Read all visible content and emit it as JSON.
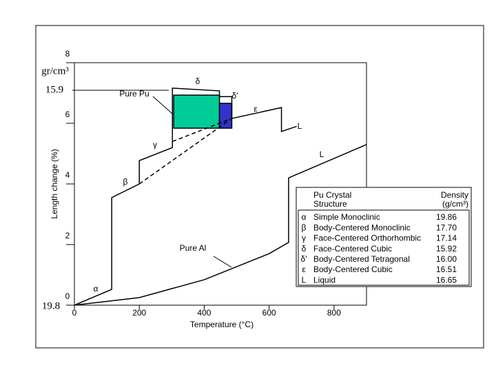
{
  "chart_data": {
    "type": "line",
    "xlabel": "Temperature (°C)",
    "ylabel": "Length change (%)",
    "xlim": [
      0,
      900
    ],
    "ylim": [
      0,
      8
    ],
    "xticks": [
      0,
      200,
      400,
      600,
      800
    ],
    "yticks": [
      0,
      2,
      4,
      6,
      8
    ],
    "series": [
      {
        "name": "Pure Pu",
        "color": "#000000",
        "dash": false,
        "x": [
          0,
          115,
          115,
          200,
          200,
          302,
          302,
          447,
          447,
          485,
          485,
          638,
          638,
          685
        ],
        "values": [
          0,
          0.52,
          3.55,
          4.0,
          4.77,
          5.2,
          7.16,
          7.07,
          6.88,
          6.88,
          6.16,
          6.52,
          5.73,
          5.9
        ]
      },
      {
        "name": "Pure Pu",
        "color": "#000000",
        "dash": true,
        "x": [
          200,
          485
        ],
        "values": [
          4.0,
          6.16
        ]
      },
      {
        "name": "Pure Pu",
        "color": "#000000",
        "dash": true,
        "x": [
          302,
          485
        ],
        "values": [
          5.4,
          6.16
        ]
      },
      {
        "name": "Pure Al",
        "color": "#000000",
        "dash": false,
        "x": [
          0,
          200,
          400,
          600,
          660,
          660,
          900
        ],
        "values": [
          0,
          0.25,
          0.84,
          1.7,
          2.07,
          4.2,
          5.3
        ]
      }
    ],
    "boxes": [
      {
        "x": [
          306,
          447
        ],
        "y": [
          5.84,
          6.93
        ],
        "color": "#00cc99"
      },
      {
        "x": [
          447,
          485
        ],
        "y": [
          5.84,
          6.66
        ],
        "color": "#3333cc"
      }
    ],
    "annotations": [
      "gr/cm³",
      "15.9",
      "19.8",
      "Pure Pu",
      "δ",
      "δ′",
      "ε",
      "L",
      "γ",
      "β",
      "α",
      "L",
      "Pure Al"
    ],
    "table": {
      "header": [
        "Pu Crystal",
        "Structure",
        "Density",
        "(g/cm³)"
      ],
      "rows": [
        [
          "α",
          "Simple Monoclinic",
          "19.86"
        ],
        [
          "β",
          "Body-Centered Monoclinic",
          "17.70"
        ],
        [
          "γ",
          "Face-Centered Orthorhombic",
          "17.14"
        ],
        [
          "δ",
          "Face-Centered  Cubic",
          "15.92"
        ],
        [
          "δ′",
          "Body-Centered Tetragonal",
          "16.00"
        ],
        [
          "ε",
          "Body-Centered Cubic",
          "16.51"
        ],
        [
          "L",
          "Liquid",
          "16.65"
        ]
      ]
    }
  }
}
